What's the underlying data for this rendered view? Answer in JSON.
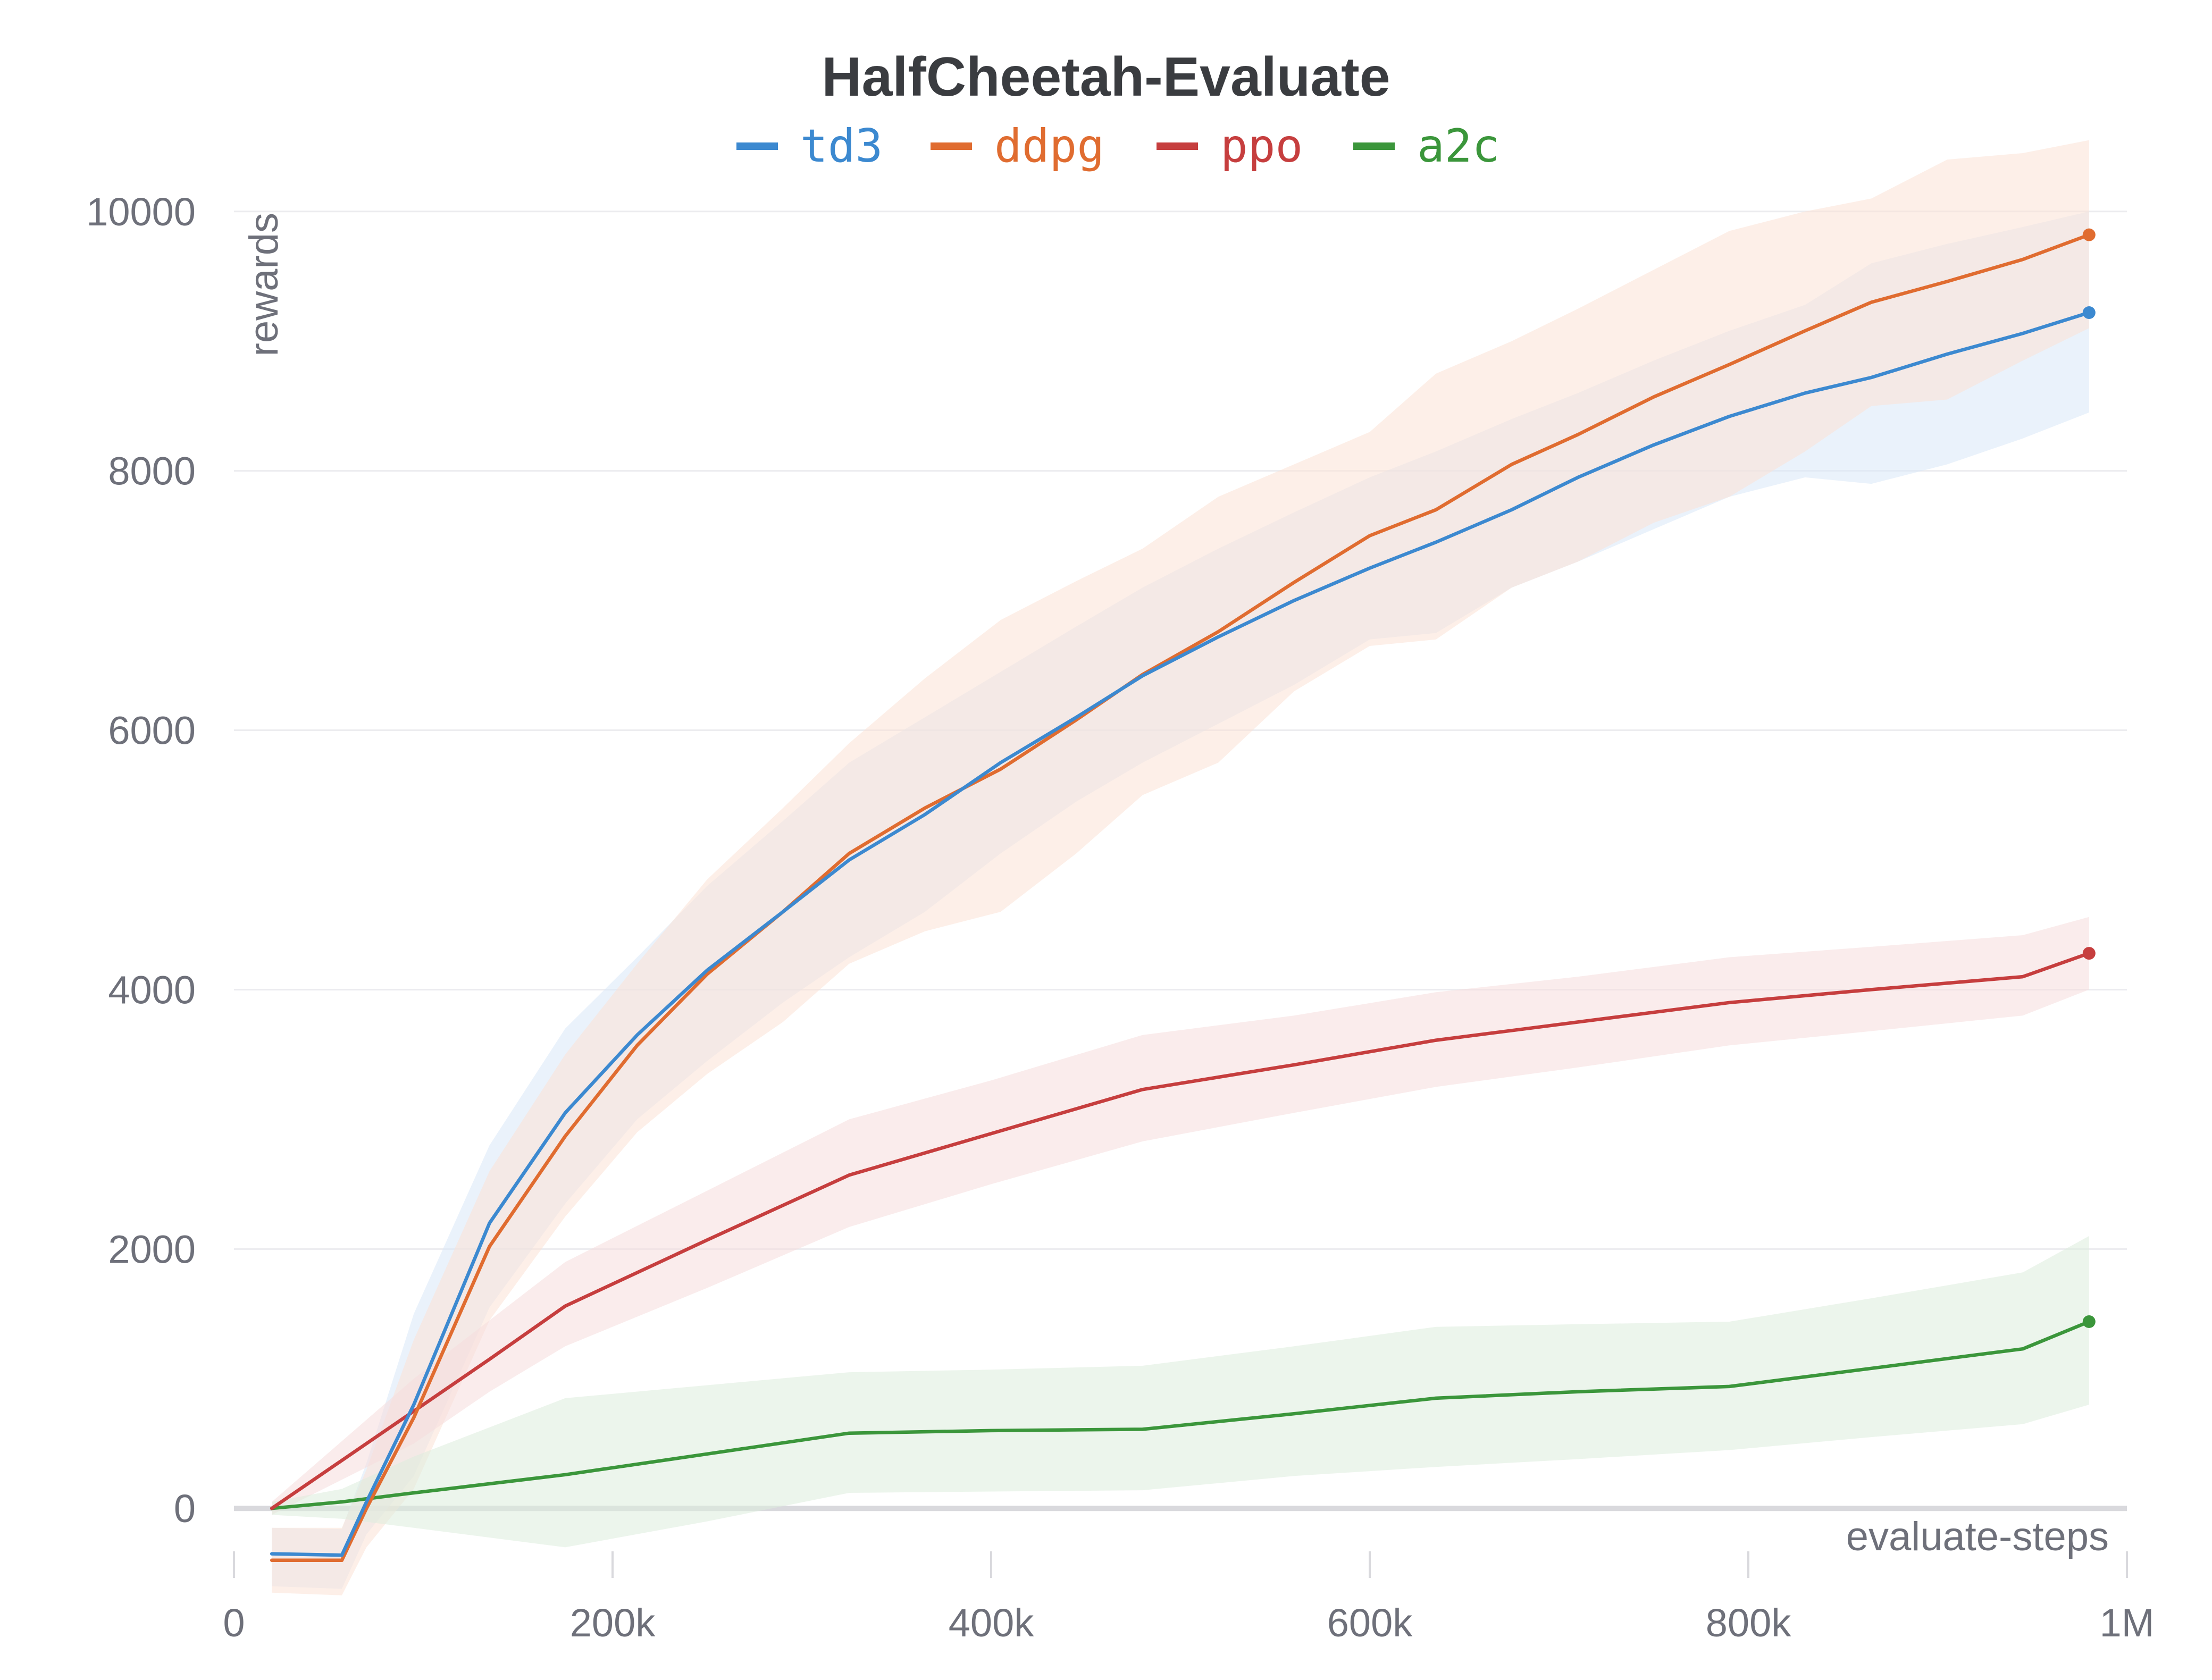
{
  "chart_data": {
    "type": "line",
    "title": "HalfCheetah-Evaluate",
    "xlabel": "evaluate-steps",
    "ylabel": "rewards",
    "xlim": [
      0,
      1000000
    ],
    "ylim": [
      -700,
      10700
    ],
    "x_ticks": [
      {
        "value": 0,
        "label": "0"
      },
      {
        "value": 200000,
        "label": "200k"
      },
      {
        "value": 400000,
        "label": "400k"
      },
      {
        "value": 600000,
        "label": "600k"
      },
      {
        "value": 800000,
        "label": "800k"
      },
      {
        "value": 1000000,
        "label": "1M"
      }
    ],
    "y_ticks": [
      {
        "value": 0,
        "label": "0"
      },
      {
        "value": 2000,
        "label": "2000"
      },
      {
        "value": 4000,
        "label": "4000"
      },
      {
        "value": 6000,
        "label": "6000"
      },
      {
        "value": 8000,
        "label": "8000"
      },
      {
        "value": 10000,
        "label": "10000"
      }
    ],
    "grid": true,
    "legend_position": "top-center",
    "series": [
      {
        "name": "td3",
        "color": "#3c89d0",
        "band_color": "#d9e8f8",
        "points": [
          [
            20000,
            -350
          ],
          [
            57000,
            -360
          ],
          [
            70000,
            50
          ],
          [
            95000,
            800
          ],
          [
            135000,
            2200
          ],
          [
            175000,
            3050
          ],
          [
            213000,
            3650
          ],
          [
            250000,
            4150
          ],
          [
            290000,
            4600
          ],
          [
            325000,
            5000
          ],
          [
            365000,
            5350
          ],
          [
            405000,
            5750
          ],
          [
            445000,
            6100
          ],
          [
            480000,
            6420
          ],
          [
            520000,
            6720
          ],
          [
            560000,
            7000
          ],
          [
            600000,
            7250
          ],
          [
            635000,
            7450
          ],
          [
            675000,
            7700
          ],
          [
            710000,
            7950
          ],
          [
            750000,
            8200
          ],
          [
            790000,
            8420
          ],
          [
            830000,
            8600
          ],
          [
            865000,
            8720
          ],
          [
            905000,
            8900
          ],
          [
            945000,
            9060
          ],
          [
            980000,
            9220
          ]
        ],
        "upper": [
          [
            20000,
            -150
          ],
          [
            57000,
            -160
          ],
          [
            70000,
            350
          ],
          [
            95000,
            1500
          ],
          [
            135000,
            2800
          ],
          [
            175000,
            3700
          ],
          [
            213000,
            4250
          ],
          [
            250000,
            4800
          ],
          [
            290000,
            5300
          ],
          [
            325000,
            5750
          ],
          [
            365000,
            6100
          ],
          [
            405000,
            6450
          ],
          [
            445000,
            6800
          ],
          [
            480000,
            7100
          ],
          [
            520000,
            7400
          ],
          [
            560000,
            7680
          ],
          [
            600000,
            7950
          ],
          [
            635000,
            8150
          ],
          [
            675000,
            8400
          ],
          [
            710000,
            8600
          ],
          [
            750000,
            8850
          ],
          [
            790000,
            9080
          ],
          [
            830000,
            9280
          ],
          [
            865000,
            9600
          ],
          [
            905000,
            9750
          ],
          [
            945000,
            9880
          ],
          [
            980000,
            10000
          ]
        ],
        "lower": [
          [
            20000,
            -600
          ],
          [
            57000,
            -620
          ],
          [
            70000,
            -200
          ],
          [
            95000,
            250
          ],
          [
            135000,
            1550
          ],
          [
            175000,
            2350
          ],
          [
            213000,
            3000
          ],
          [
            250000,
            3450
          ],
          [
            290000,
            3900
          ],
          [
            325000,
            4250
          ],
          [
            365000,
            4600
          ],
          [
            405000,
            5050
          ],
          [
            445000,
            5450
          ],
          [
            480000,
            5750
          ],
          [
            520000,
            6050
          ],
          [
            560000,
            6350
          ],
          [
            600000,
            6700
          ],
          [
            635000,
            6750
          ],
          [
            675000,
            7100
          ],
          [
            710000,
            7300
          ],
          [
            750000,
            7550
          ],
          [
            790000,
            7800
          ],
          [
            830000,
            7950
          ],
          [
            865000,
            7900
          ],
          [
            905000,
            8050
          ],
          [
            945000,
            8250
          ],
          [
            980000,
            8450
          ]
        ]
      },
      {
        "name": "ddpg",
        "color": "#e06c30",
        "band_color": "#fbe2d6",
        "points": [
          [
            20000,
            -400
          ],
          [
            57000,
            -400
          ],
          [
            70000,
            0
          ],
          [
            95000,
            700
          ],
          [
            135000,
            2020
          ],
          [
            175000,
            2870
          ],
          [
            213000,
            3570
          ],
          [
            250000,
            4120
          ],
          [
            290000,
            4600
          ],
          [
            325000,
            5050
          ],
          [
            365000,
            5400
          ],
          [
            405000,
            5700
          ],
          [
            445000,
            6080
          ],
          [
            480000,
            6430
          ],
          [
            520000,
            6760
          ],
          [
            560000,
            7140
          ],
          [
            600000,
            7500
          ],
          [
            635000,
            7700
          ],
          [
            675000,
            8050
          ],
          [
            710000,
            8280
          ],
          [
            750000,
            8570
          ],
          [
            790000,
            8820
          ],
          [
            830000,
            9080
          ],
          [
            865000,
            9300
          ],
          [
            905000,
            9460
          ],
          [
            945000,
            9630
          ],
          [
            980000,
            9820
          ]
        ],
        "upper": [
          [
            20000,
            -150
          ],
          [
            57000,
            -150
          ],
          [
            70000,
            300
          ],
          [
            95000,
            1300
          ],
          [
            135000,
            2600
          ],
          [
            175000,
            3500
          ],
          [
            213000,
            4200
          ],
          [
            250000,
            4850
          ],
          [
            290000,
            5400
          ],
          [
            325000,
            5900
          ],
          [
            365000,
            6400
          ],
          [
            405000,
            6850
          ],
          [
            445000,
            7150
          ],
          [
            480000,
            7400
          ],
          [
            520000,
            7800
          ],
          [
            560000,
            8050
          ],
          [
            600000,
            8300
          ],
          [
            635000,
            8750
          ],
          [
            675000,
            9000
          ],
          [
            710000,
            9250
          ],
          [
            750000,
            9550
          ],
          [
            790000,
            9850
          ],
          [
            830000,
            10000
          ],
          [
            865000,
            10100
          ],
          [
            905000,
            10400
          ],
          [
            945000,
            10450
          ],
          [
            980000,
            10550
          ]
        ],
        "lower": [
          [
            20000,
            -650
          ],
          [
            57000,
            -670
          ],
          [
            70000,
            -300
          ],
          [
            95000,
            150
          ],
          [
            135000,
            1450
          ],
          [
            175000,
            2250
          ],
          [
            213000,
            2900
          ],
          [
            250000,
            3350
          ],
          [
            290000,
            3750
          ],
          [
            325000,
            4200
          ],
          [
            365000,
            4450
          ],
          [
            405000,
            4600
          ],
          [
            445000,
            5050
          ],
          [
            480000,
            5500
          ],
          [
            520000,
            5750
          ],
          [
            560000,
            6300
          ],
          [
            600000,
            6650
          ],
          [
            635000,
            6700
          ],
          [
            675000,
            7100
          ],
          [
            710000,
            7300
          ],
          [
            750000,
            7600
          ],
          [
            790000,
            7800
          ],
          [
            830000,
            8150
          ],
          [
            865000,
            8500
          ],
          [
            905000,
            8550
          ],
          [
            945000,
            8850
          ],
          [
            980000,
            9100
          ]
        ]
      },
      {
        "name": "ppo",
        "color": "#c63e3e",
        "band_color": "#f6dcdc",
        "points": [
          [
            20000,
            0
          ],
          [
            95000,
            750
          ],
          [
            135000,
            1150
          ],
          [
            175000,
            1560
          ],
          [
            250000,
            2070
          ],
          [
            325000,
            2570
          ],
          [
            400000,
            2890
          ],
          [
            480000,
            3230
          ],
          [
            560000,
            3420
          ],
          [
            635000,
            3610
          ],
          [
            710000,
            3750
          ],
          [
            790000,
            3900
          ],
          [
            865000,
            4000
          ],
          [
            945000,
            4100
          ],
          [
            980000,
            4280
          ]
        ],
        "upper": [
          [
            20000,
            50
          ],
          [
            95000,
            1000
          ],
          [
            135000,
            1450
          ],
          [
            175000,
            1900
          ],
          [
            250000,
            2450
          ],
          [
            325000,
            3000
          ],
          [
            400000,
            3300
          ],
          [
            480000,
            3650
          ],
          [
            560000,
            3800
          ],
          [
            635000,
            3980
          ],
          [
            710000,
            4100
          ],
          [
            790000,
            4250
          ],
          [
            865000,
            4330
          ],
          [
            945000,
            4420
          ],
          [
            980000,
            4560
          ]
        ],
        "lower": [
          [
            20000,
            -50
          ],
          [
            95000,
            500
          ],
          [
            135000,
            900
          ],
          [
            175000,
            1250
          ],
          [
            250000,
            1700
          ],
          [
            325000,
            2170
          ],
          [
            400000,
            2500
          ],
          [
            480000,
            2830
          ],
          [
            560000,
            3050
          ],
          [
            635000,
            3250
          ],
          [
            710000,
            3400
          ],
          [
            790000,
            3570
          ],
          [
            865000,
            3680
          ],
          [
            945000,
            3800
          ],
          [
            980000,
            4000
          ]
        ]
      },
      {
        "name": "a2c",
        "color": "#3b963b",
        "band_color": "#dcecdc",
        "points": [
          [
            20000,
            0
          ],
          [
            57000,
            50
          ],
          [
            95000,
            120
          ],
          [
            175000,
            260
          ],
          [
            250000,
            420
          ],
          [
            325000,
            580
          ],
          [
            400000,
            600
          ],
          [
            480000,
            610
          ],
          [
            560000,
            730
          ],
          [
            635000,
            850
          ],
          [
            710000,
            900
          ],
          [
            790000,
            940
          ],
          [
            865000,
            1080
          ],
          [
            945000,
            1230
          ],
          [
            980000,
            1440
          ]
        ],
        "upper": [
          [
            20000,
            50
          ],
          [
            57000,
            150
          ],
          [
            95000,
            400
          ],
          [
            175000,
            850
          ],
          [
            250000,
            950
          ],
          [
            325000,
            1050
          ],
          [
            400000,
            1070
          ],
          [
            480000,
            1100
          ],
          [
            560000,
            1250
          ],
          [
            635000,
            1400
          ],
          [
            710000,
            1420
          ],
          [
            790000,
            1440
          ],
          [
            865000,
            1620
          ],
          [
            945000,
            1820
          ],
          [
            980000,
            2100
          ]
        ],
        "lower": [
          [
            20000,
            -50
          ],
          [
            57000,
            -80
          ],
          [
            95000,
            -150
          ],
          [
            175000,
            -300
          ],
          [
            250000,
            -100
          ],
          [
            325000,
            120
          ],
          [
            400000,
            130
          ],
          [
            480000,
            140
          ],
          [
            560000,
            250
          ],
          [
            635000,
            320
          ],
          [
            710000,
            380
          ],
          [
            790000,
            450
          ],
          [
            865000,
            550
          ],
          [
            945000,
            650
          ],
          [
            980000,
            800
          ]
        ]
      }
    ]
  }
}
